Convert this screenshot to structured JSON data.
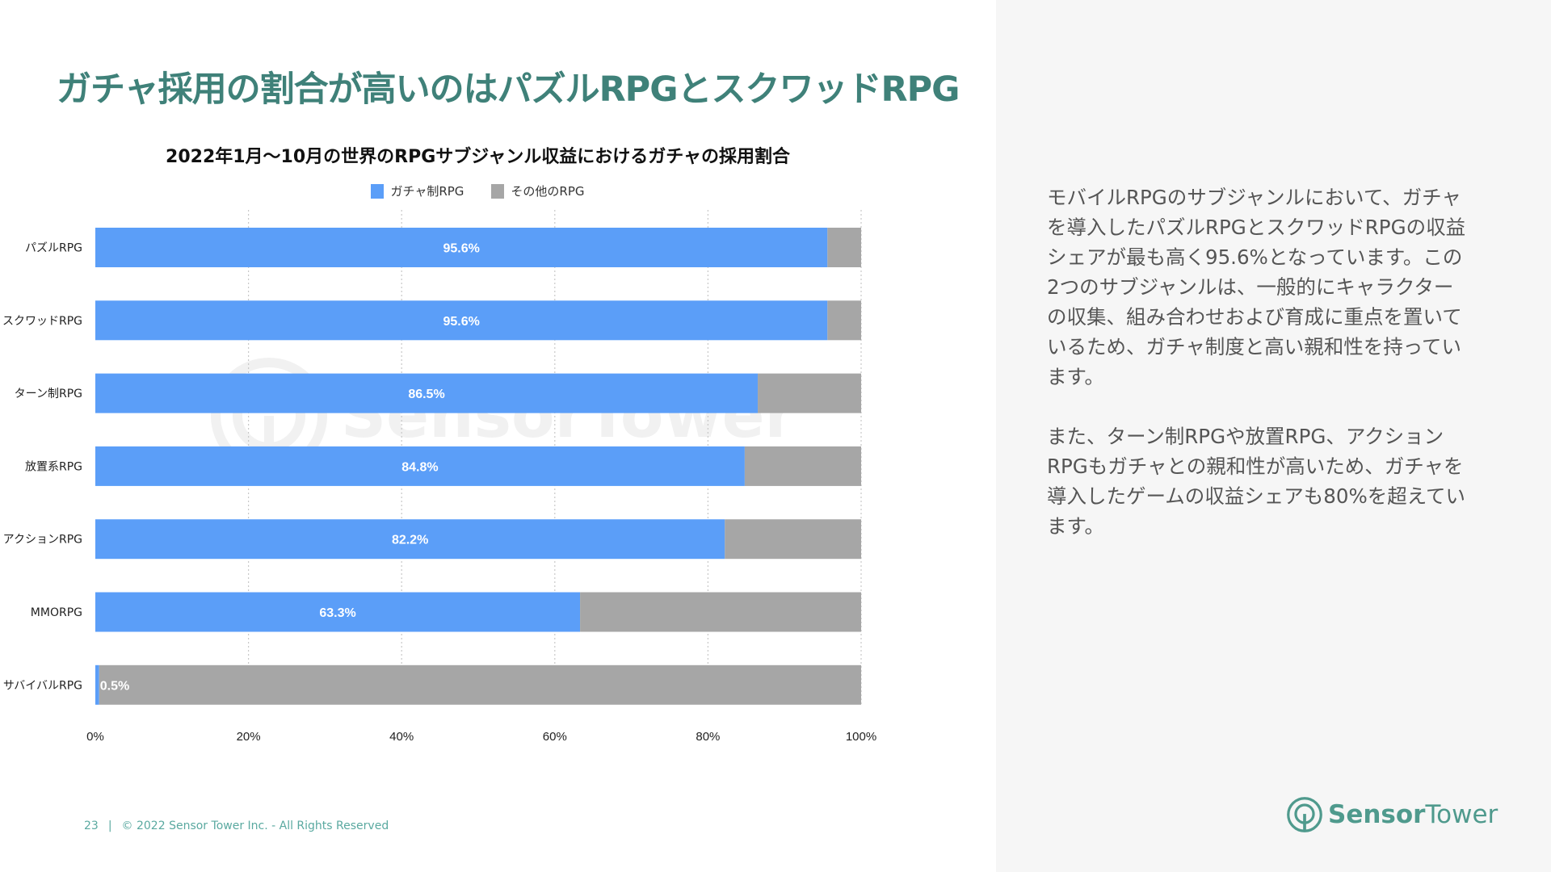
{
  "slide": {
    "title": "ガチャ採用の割合が高いのはパズルRPGとスクワッドRPG",
    "page_number": "23",
    "copyright": "© 2022 Sensor Tower Inc. - All Rights Reserved",
    "logo_text_bold": "Sensor",
    "logo_text_light": "Tower",
    "watermark_text": "SensorTower"
  },
  "body": {
    "paragraphs": [
      "モバイルRPGのサブジャンルにおいて、ガチャを導入したパズルRPGとスクワッドRPGの収益シェアが最も高く95.6%となっています。この2つのサブジャンルは、一般的にキャラクターの収集、組み合わせおよび育成に重点を置いているため、ガチャ制度と高い親和性を持っています。",
      "また、ターン制RPGや放置RPG、アクションRPGもガチャとの親和性が高いため、ガチャを導入したゲームの収益シェアも80%を超えています。"
    ]
  },
  "colors": {
    "gacha": "#5b9ef8",
    "other": "#a6a6a6",
    "title": "#3f8179"
  },
  "chart_data": {
    "type": "bar",
    "stacked": true,
    "orientation": "horizontal",
    "title": "2022年1月〜10月の世界のRPGサブジャンル収益におけるガチャの採用割合",
    "categories": [
      "パズルRPG",
      "スクワッドRPG",
      "ターン制RPG",
      "放置系RPG",
      "アクションRPG",
      "MMORPG",
      "サバイバルRPG"
    ],
    "series": [
      {
        "name": "ガチャ制RPG",
        "values": [
          95.6,
          95.6,
          86.5,
          84.8,
          82.2,
          63.3,
          0.5
        ]
      },
      {
        "name": "その他のRPG",
        "values": [
          4.4,
          4.4,
          13.5,
          15.2,
          17.8,
          36.7,
          99.5
        ]
      }
    ],
    "data_labels": [
      "95.6%",
      "95.6%",
      "86.5%",
      "84.8%",
      "82.2%",
      "63.3%",
      "0.5%"
    ],
    "x_ticks": [
      "0%",
      "20%",
      "40%",
      "60%",
      "80%",
      "100%"
    ],
    "xlim": [
      0,
      100
    ],
    "grid": "vertical dotted",
    "legend": "top-center"
  }
}
